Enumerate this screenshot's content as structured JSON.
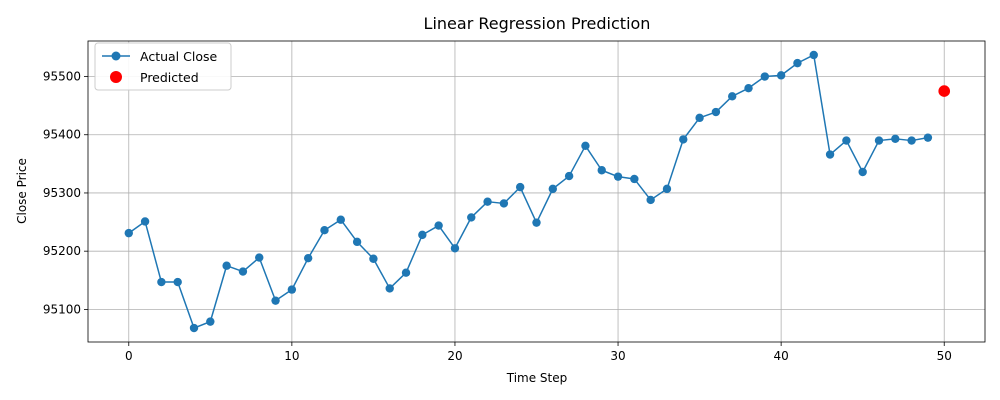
{
  "chart_data": {
    "type": "line",
    "title": "Linear Regression Prediction",
    "xlabel": "Time Step",
    "ylabel": "Close Price",
    "xlim": [
      -2.5,
      52.5
    ],
    "ylim": [
      95044,
      95561
    ],
    "xticks": [
      0,
      10,
      20,
      30,
      40,
      50
    ],
    "yticks": [
      95100,
      95200,
      95300,
      95400,
      95500
    ],
    "grid": true,
    "legend_position": "top-left",
    "series": [
      {
        "name": "Actual Close",
        "type": "line",
        "marker": "circle",
        "color": "#1f77b4",
        "x": [
          0,
          1,
          2,
          3,
          4,
          5,
          6,
          7,
          8,
          9,
          10,
          11,
          12,
          13,
          14,
          15,
          16,
          17,
          18,
          19,
          20,
          21,
          22,
          23,
          24,
          25,
          26,
          27,
          28,
          29,
          30,
          31,
          32,
          33,
          34,
          35,
          36,
          37,
          38,
          39,
          40,
          41,
          42,
          43,
          44,
          45,
          46,
          47,
          48,
          49
        ],
        "values": [
          95231,
          95251,
          95147,
          95147,
          95068,
          95079,
          95175,
          95165,
          95189,
          95115,
          95134,
          95188,
          95236,
          95254,
          95216,
          95187,
          95136,
          95163,
          95228,
          95244,
          95205,
          95258,
          95285,
          95282,
          95310,
          95249,
          95307,
          95329,
          95381,
          95339,
          95328,
          95324,
          95288,
          95307,
          95392,
          95429,
          95439,
          95466,
          95480,
          95500,
          95502,
          95523,
          95537,
          95366,
          95390,
          95336,
          95390,
          95393,
          95390,
          95395
        ]
      },
      {
        "name": "Predicted",
        "type": "scatter",
        "marker": "circle",
        "color": "#ff0000",
        "x": [
          50
        ],
        "values": [
          95475
        ]
      }
    ]
  }
}
